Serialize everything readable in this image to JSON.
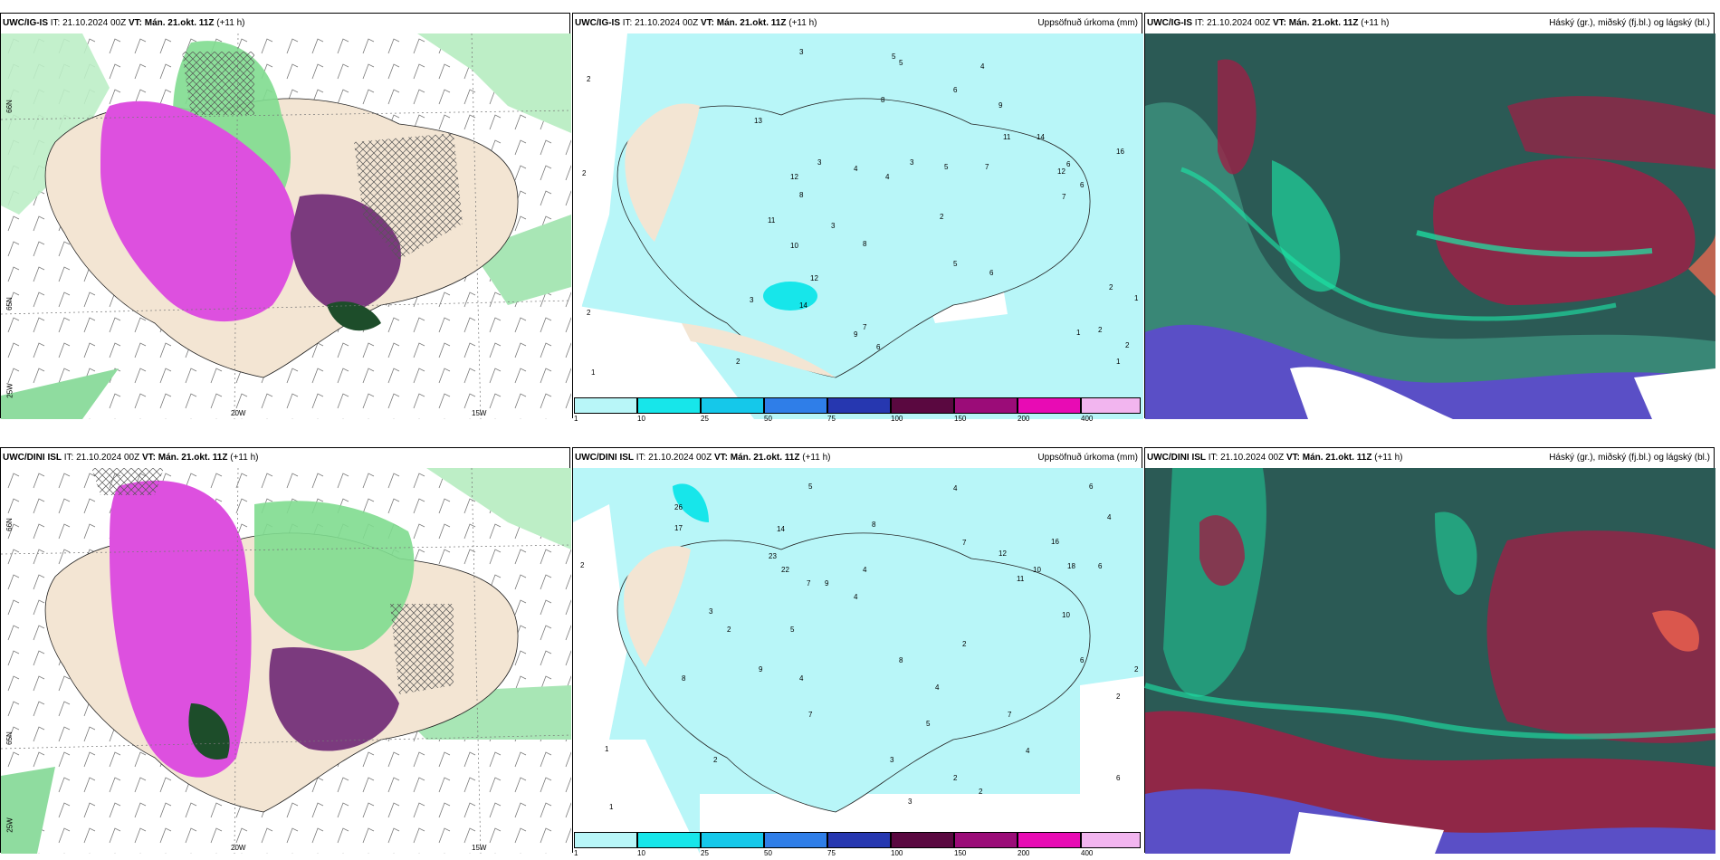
{
  "rows": [
    {
      "model": "UWC/IG-IS",
      "it_label": "IT:",
      "it": "21.10.2024 00Z",
      "vt_label": "VT:",
      "vt": "Mán. 21.okt. 11Z",
      "lead": "(+11 h)",
      "precip_title": "Uppsöfnuð úrkoma (mm)",
      "cloud_title": "Háský (gr.), miðský (fj.bl.) og lágský (bl.)",
      "lat_ticks": [
        "66N",
        "65N",
        "25W"
      ],
      "lon_ticks": [
        "20W",
        "15W"
      ],
      "precip_values": [
        "3",
        "5",
        "5",
        "4",
        "2",
        "6",
        "9",
        "11",
        "8",
        "14",
        "13",
        "6",
        "3",
        "4",
        "4",
        "3",
        "5",
        "7",
        "2",
        "7",
        "12",
        "6",
        "8",
        "16",
        "12",
        "2",
        "2",
        "11",
        "10",
        "12",
        "14",
        "9",
        "7",
        "6",
        "3",
        "3",
        "8",
        "5",
        "6",
        "1",
        "1",
        "1",
        "2",
        "2",
        "2",
        "2",
        "1"
      ]
    },
    {
      "model": "UWC/DINI ISL",
      "it_label": "IT:",
      "it": "21.10.2024 00Z",
      "vt_label": "VT:",
      "vt": "Mán. 21.okt. 11Z",
      "lead": "(+11 h)",
      "precip_title": "Uppsöfnuð úrkoma (mm)",
      "cloud_title": "Háský (gr.), miðský (fj.bl.) og lágský (bl.)",
      "lat_ticks": [
        "66N",
        "65N",
        "25W"
      ],
      "lon_ticks": [
        "20W",
        "15W"
      ],
      "precip_values": [
        "5",
        "4",
        "6",
        "4",
        "26",
        "17",
        "14",
        "23",
        "22",
        "8",
        "7",
        "12",
        "16",
        "11",
        "4",
        "10",
        "7",
        "9",
        "18",
        "6",
        "4",
        "2",
        "2",
        "2",
        "3",
        "2",
        "5",
        "8",
        "9",
        "4",
        "7",
        "8",
        "4",
        "3",
        "2",
        "2",
        "1",
        "6",
        "4",
        "1",
        "2",
        "3",
        "5",
        "7",
        "6",
        "2",
        "10"
      ]
    }
  ],
  "colorbar": {
    "labels": [
      "1",
      "10",
      "25",
      "50",
      "75",
      "100",
      "150",
      "200",
      "400"
    ],
    "colors": [
      "#b8f6f8",
      "#17e6ea",
      "#15c8ea",
      "#2f7ee8",
      "#2637b0",
      "#5a0840",
      "#9b0c78",
      "#e80bb4",
      "#f2b5ef"
    ]
  },
  "palette": {
    "sea_precip": "#b8f6f8",
    "land": "#f3e5d3",
    "green": "#7fdc8f",
    "magenta": "#dd50df",
    "purple": "#7b3a7e",
    "dark_teal": "#2b5a55",
    "cloud_red": "#9b2146"
  }
}
